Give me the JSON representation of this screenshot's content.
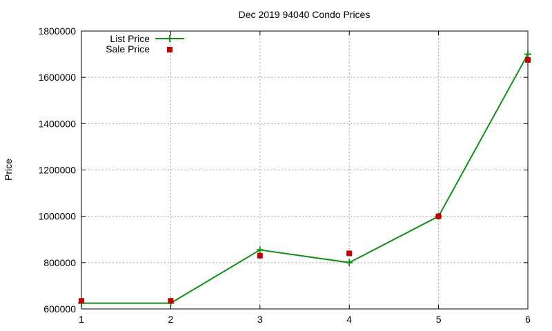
{
  "chart_data": {
    "type": "line",
    "title": "Dec 2019 94040 Condo Prices",
    "xlabel": "",
    "ylabel": "Price",
    "xlim": [
      1,
      6
    ],
    "ylim": [
      600000,
      1800000
    ],
    "xticks": [
      1,
      2,
      3,
      4,
      5,
      6
    ],
    "yticks": [
      600000,
      800000,
      1000000,
      1200000,
      1400000,
      1600000,
      1800000
    ],
    "grid": true,
    "legend_position": "top-left",
    "x": [
      1,
      2,
      3,
      4,
      5,
      6
    ],
    "series": [
      {
        "name": "List Price",
        "style": "line-with-plus-markers",
        "color": "#109010",
        "values": [
          625000,
          625000,
          855000,
          800000,
          1000000,
          1700000
        ]
      },
      {
        "name": "Sale Price",
        "style": "square-markers",
        "color": "#c00000",
        "values": [
          635000,
          635000,
          830000,
          840000,
          1000000,
          1675000
        ]
      }
    ]
  }
}
